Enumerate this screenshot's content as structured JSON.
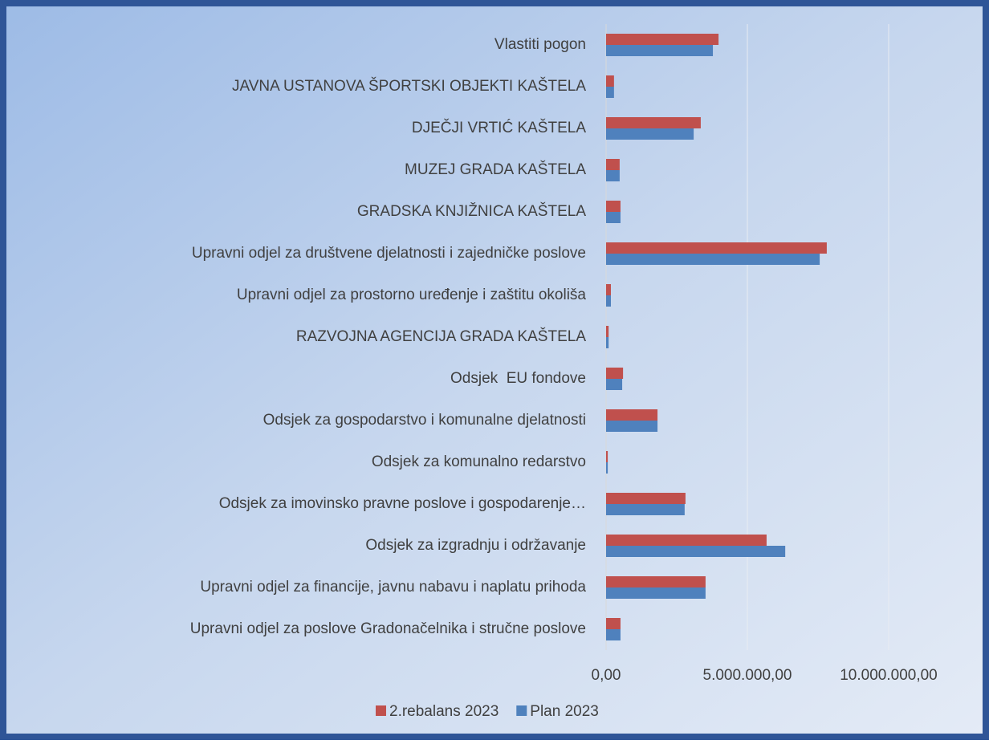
{
  "chart_data": {
    "type": "bar",
    "orientation": "horizontal",
    "categories": [
      "Vlastiti pogon",
      "JAVNA USTANOVA ŠPORTSKI OBJEKTI KAŠTELA",
      "DJEČJI VRTIĆ KAŠTELA",
      "MUZEJ GRADA KAŠTELA",
      "GRADSKA KNJIŽNICA KAŠTELA",
      "Upravni odjel za društvene djelatnosti i zajedničke poslove",
      "Upravni odjel za prostorno uređenje i zaštitu okoliša",
      "RAZVOJNA AGENCIJA GRADA KAŠTELA",
      "Odsjek  EU fondove",
      "Odsjek za gospodarstvo i komunalne djelatnosti",
      "Odsjek za komunalno redarstvo",
      "Odsjek za imovinsko pravne poslove i gospodarenje…",
      "Odsjek za izgradnju i održavanje",
      "Upravni odjel za financije, javnu nabavu i naplatu prihoda",
      "Upravni odjel za poslove Gradonačelnika i stručne poslove"
    ],
    "series": [
      {
        "name": "2.rebalans 2023",
        "color": "#c0504d",
        "values": [
          3980000,
          280000,
          3350000,
          480000,
          510000,
          7810000,
          170000,
          90000,
          600000,
          1820000,
          60000,
          2810000,
          5680000,
          3520000,
          510000
        ]
      },
      {
        "name": "Plan 2023",
        "color": "#4f81bd",
        "values": [
          3780000,
          280000,
          3100000,
          480000,
          510000,
          7560000,
          170000,
          90000,
          570000,
          1820000,
          60000,
          2780000,
          6340000,
          3520000,
          510000
        ]
      }
    ],
    "xlim": [
      0,
      13000000
    ],
    "xticks": [
      {
        "value": 0,
        "label": "0,00"
      },
      {
        "value": 5000000,
        "label": "5.000.000,00"
      },
      {
        "value": 10000000,
        "label": "10.000.000,00"
      }
    ],
    "grid": true,
    "legend": "bottom"
  }
}
